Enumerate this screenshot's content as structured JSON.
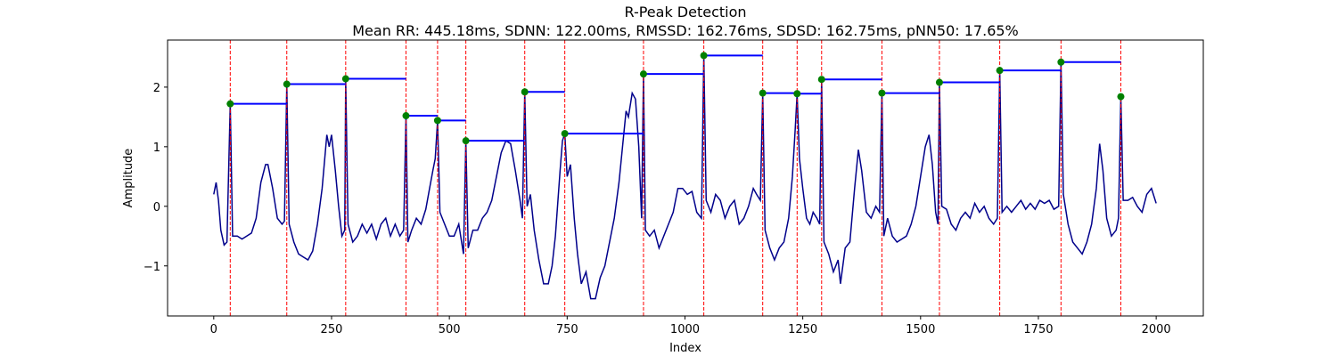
{
  "chart_data": {
    "type": "line",
    "title": "R-Peak Detection",
    "subtitle": "Mean RR: 445.18ms, SDNN: 122.00ms, RMSSD: 162.76ms, SDSD: 162.75ms, pNN50: 17.65%",
    "xlabel": "Index",
    "ylabel": "Amplitude",
    "xlim": [
      -98,
      2100
    ],
    "ylim": [
      -1.84,
      2.79
    ],
    "xticks": [
      0,
      250,
      500,
      750,
      1000,
      1250,
      1500,
      1750,
      2000
    ],
    "yticks": [
      {
        "value": -1,
        "label": "−1"
      },
      0,
      1,
      2
    ],
    "signal": {
      "color": "#00008b",
      "x": [
        0,
        5,
        10,
        15,
        22,
        28,
        35,
        40,
        50,
        60,
        70,
        80,
        90,
        100,
        110,
        115,
        125,
        135,
        145,
        150,
        155,
        160,
        170,
        180,
        190,
        200,
        210,
        220,
        230,
        240,
        245,
        250,
        258,
        265,
        272,
        278,
        280,
        285,
        295,
        305,
        315,
        325,
        335,
        345,
        355,
        365,
        375,
        385,
        395,
        403,
        408,
        412,
        420,
        430,
        440,
        450,
        458,
        465,
        470,
        475,
        480,
        490,
        500,
        510,
        520,
        530,
        535,
        540,
        550,
        560,
        570,
        580,
        590,
        600,
        610,
        620,
        630,
        640,
        650,
        655,
        660,
        665,
        672,
        680,
        690,
        700,
        710,
        718,
        725,
        735,
        740,
        745,
        750,
        757,
        765,
        772,
        780,
        790,
        800,
        810,
        820,
        830,
        840,
        850,
        860,
        870,
        875,
        880,
        888,
        895,
        902,
        908,
        912,
        916,
        925,
        935,
        945,
        955,
        965,
        975,
        985,
        995,
        1005,
        1015,
        1025,
        1035,
        1040,
        1045,
        1055,
        1065,
        1075,
        1085,
        1095,
        1105,
        1115,
        1125,
        1135,
        1145,
        1152,
        1160,
        1165,
        1170,
        1180,
        1190,
        1200,
        1210,
        1220,
        1228,
        1234,
        1238,
        1243,
        1250,
        1258,
        1265,
        1272,
        1280,
        1286,
        1290,
        1295,
        1305,
        1315,
        1325,
        1330,
        1340,
        1350,
        1360,
        1368,
        1375,
        1385,
        1395,
        1405,
        1413,
        1418,
        1422,
        1430,
        1440,
        1450,
        1460,
        1470,
        1480,
        1490,
        1500,
        1510,
        1518,
        1525,
        1532,
        1537,
        1540,
        1545,
        1555,
        1565,
        1575,
        1585,
        1595,
        1605,
        1615,
        1625,
        1635,
        1645,
        1655,
        1663,
        1668,
        1673,
        1683,
        1693,
        1703,
        1713,
        1723,
        1733,
        1743,
        1753,
        1763,
        1773,
        1783,
        1793,
        1798,
        1803,
        1813,
        1823,
        1833,
        1843,
        1853,
        1863,
        1873,
        1880,
        1887,
        1895,
        1905,
        1915,
        1920,
        1925,
        1930,
        1940,
        1950,
        1960,
        1970,
        1980,
        1990,
        2000
      ],
      "values": [
        0.2,
        0.4,
        0.1,
        -0.4,
        -0.65,
        -0.6,
        1.72,
        -0.5,
        -0.5,
        -0.55,
        -0.5,
        -0.45,
        -0.2,
        0.4,
        0.7,
        0.7,
        0.3,
        -0.2,
        -0.3,
        -0.25,
        2.05,
        -0.3,
        -0.6,
        -0.8,
        -0.85,
        -0.9,
        -0.75,
        -0.3,
        0.3,
        1.2,
        1.0,
        1.2,
        0.6,
        0.0,
        -0.5,
        -0.4,
        2.14,
        -0.3,
        -0.6,
        -0.5,
        -0.3,
        -0.45,
        -0.3,
        -0.55,
        -0.3,
        -0.2,
        -0.5,
        -0.3,
        -0.5,
        -0.4,
        1.52,
        -0.6,
        -0.4,
        -0.2,
        -0.3,
        -0.05,
        0.3,
        0.6,
        0.8,
        1.44,
        -0.1,
        -0.3,
        -0.5,
        -0.5,
        -0.3,
        -0.8,
        1.1,
        -0.7,
        -0.4,
        -0.4,
        -0.2,
        -0.1,
        0.1,
        0.5,
        0.9,
        1.1,
        1.05,
        0.6,
        0.1,
        -0.2,
        1.92,
        0.0,
        0.2,
        -0.4,
        -0.9,
        -1.3,
        -1.3,
        -1.0,
        -0.5,
        0.6,
        1.1,
        1.22,
        0.5,
        0.7,
        -0.2,
        -0.8,
        -1.3,
        -1.1,
        -1.55,
        -1.55,
        -1.2,
        -1.0,
        -0.6,
        -0.2,
        0.4,
        1.2,
        1.6,
        1.5,
        1.9,
        1.8,
        1.0,
        -0.2,
        2.22,
        -0.4,
        -0.5,
        -0.4,
        -0.7,
        -0.5,
        -0.3,
        -0.1,
        0.3,
        0.3,
        0.2,
        0.25,
        -0.1,
        -0.2,
        2.53,
        0.1,
        -0.1,
        0.2,
        0.1,
        -0.2,
        0.0,
        0.1,
        -0.3,
        -0.2,
        0.0,
        0.3,
        0.2,
        0.1,
        1.9,
        -0.4,
        -0.7,
        -0.9,
        -0.7,
        -0.6,
        -0.2,
        0.5,
        1.3,
        1.89,
        0.8,
        0.3,
        -0.2,
        -0.3,
        -0.1,
        -0.2,
        -0.3,
        2.13,
        -0.6,
        -0.8,
        -1.1,
        -0.9,
        -1.3,
        -0.7,
        -0.6,
        0.3,
        0.95,
        0.6,
        -0.1,
        -0.2,
        0.0,
        -0.1,
        1.9,
        -0.5,
        -0.2,
        -0.5,
        -0.6,
        -0.55,
        -0.5,
        -0.3,
        0.0,
        0.5,
        1.0,
        1.2,
        0.7,
        -0.1,
        -0.3,
        2.08,
        0.0,
        -0.05,
        -0.3,
        -0.4,
        -0.2,
        -0.1,
        -0.2,
        0.05,
        -0.1,
        0.0,
        -0.2,
        -0.3,
        -0.2,
        2.28,
        -0.1,
        0.0,
        -0.1,
        0.0,
        0.1,
        -0.05,
        0.05,
        -0.05,
        0.1,
        0.05,
        0.1,
        -0.05,
        0.0,
        2.42,
        0.2,
        -0.3,
        -0.6,
        -0.7,
        -0.8,
        -0.6,
        -0.3,
        0.3,
        1.05,
        0.6,
        -0.2,
        -0.5,
        -0.4,
        -0.2,
        1.84,
        0.1,
        0.1,
        0.15,
        0.0,
        -0.1,
        0.2,
        0.3,
        0.05
      ]
    },
    "peaks": {
      "color": "#008000",
      "x": [
        35,
        155,
        280,
        408,
        475,
        535,
        660,
        745,
        912,
        1040,
        1165,
        1238,
        1290,
        1418,
        1540,
        1668,
        1798,
        1925
      ],
      "values": [
        1.72,
        2.05,
        2.14,
        1.52,
        1.44,
        1.1,
        1.92,
        1.22,
        2.22,
        2.53,
        1.9,
        1.89,
        2.13,
        1.9,
        2.08,
        2.28,
        2.42,
        1.84
      ]
    },
    "peak_line_color": "#ff0000",
    "rr_line_color": "#0000ff"
  }
}
